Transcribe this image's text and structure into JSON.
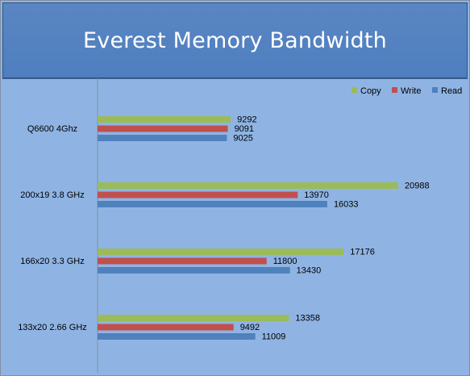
{
  "chart_data": {
    "type": "bar",
    "orientation": "horizontal",
    "title": "Everest Memory Bandwidth",
    "categories": [
      "Q6600 4Ghz",
      "200x19 3.8 GHz",
      "166x20 3.3 GHz",
      "133x20 2.66 GHz"
    ],
    "series": [
      {
        "name": "Copy",
        "color": "#9bbb59",
        "values": [
          9292,
          20988,
          17176,
          13358
        ]
      },
      {
        "name": "Write",
        "color": "#c0504d",
        "values": [
          9091,
          13970,
          11800,
          9492
        ]
      },
      {
        "name": "Read",
        "color": "#4f81bd",
        "values": [
          9025,
          16033,
          13430,
          11009
        ]
      }
    ],
    "xlim": [
      0,
      25000
    ],
    "grid": false,
    "legend_position": "top-right",
    "background_color": "#8fb4e3",
    "title_bar_color": "#4f81bd"
  }
}
